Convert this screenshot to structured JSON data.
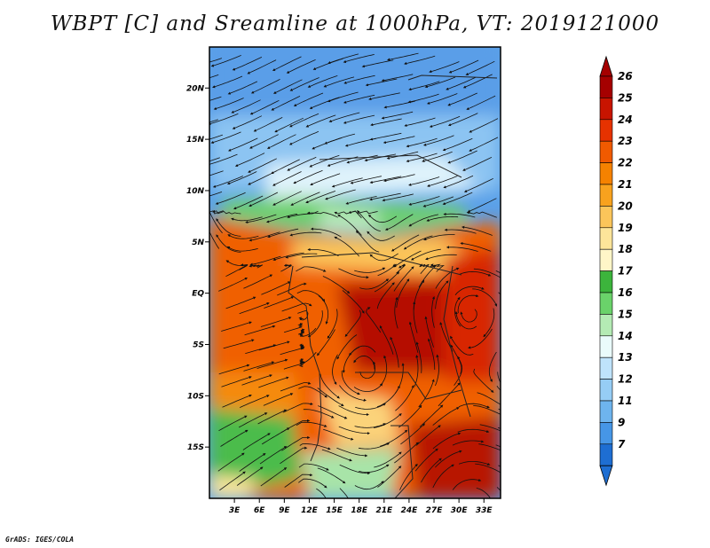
{
  "title": "WBPT [C] and Sreamline at 1000hPa, VT: 2019121000",
  "credit": "GrADS: IGES/COLA",
  "map": {
    "lon_range": [
      0,
      35
    ],
    "lat_range": [
      -20,
      24
    ],
    "lat_labels": [
      "20N",
      "15N",
      "10N",
      "5N",
      "EQ",
      "5S",
      "10S",
      "15S"
    ],
    "lat_values": [
      20,
      15,
      10,
      5,
      0,
      -5,
      -10,
      -15
    ],
    "lon_labels": [
      "3E",
      "6E",
      "9E",
      "12E",
      "15E",
      "18E",
      "21E",
      "24E",
      "27E",
      "30E",
      "33E"
    ],
    "lon_values": [
      3,
      6,
      9,
      12,
      15,
      18,
      21,
      24,
      27,
      30,
      33
    ]
  },
  "colorbar": {
    "levels": [
      "26",
      "25",
      "24",
      "23",
      "22",
      "21",
      "20",
      "19",
      "18",
      "17",
      "16",
      "15",
      "14",
      "13",
      "12",
      "11",
      "9",
      "7"
    ],
    "colors": [
      "#a50000",
      "#c81400",
      "#e63200",
      "#f05a00",
      "#f58200",
      "#f8a21e",
      "#fbc55a",
      "#fde59a",
      "#fff6c8",
      "#3cb43c",
      "#6ad26a",
      "#b4ebb4",
      "#eafbfb",
      "#bfe3fb",
      "#96cdf5",
      "#6eb4ee",
      "#4696e6",
      "#1e6ed2"
    ],
    "top_color": "#a50000",
    "bottom_color": "#1e6ed2"
  }
}
